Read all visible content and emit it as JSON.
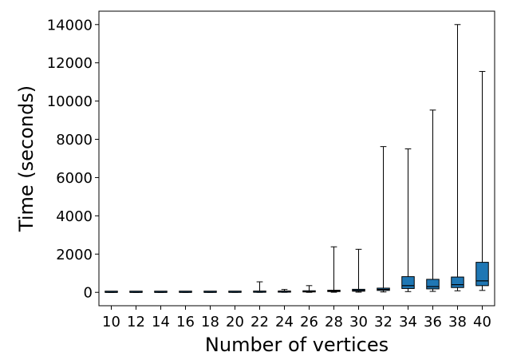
{
  "chart_data": {
    "type": "box",
    "title": "",
    "xlabel": "Number of vertices",
    "ylabel": "Time (seconds)",
    "categories": [
      "10",
      "12",
      "14",
      "16",
      "18",
      "20",
      "22",
      "24",
      "26",
      "28",
      "30",
      "32",
      "34",
      "36",
      "38",
      "40"
    ],
    "ylim": [
      -700,
      14700
    ],
    "yticks": [
      0,
      2000,
      4000,
      6000,
      8000,
      10000,
      12000,
      14000
    ],
    "grid": false,
    "box_color": "#1f77b4",
    "boxes": [
      {
        "x": "10",
        "whisker_low": 0,
        "q1": 0,
        "median": 0,
        "q3": 0,
        "whisker_high": 1
      },
      {
        "x": "12",
        "whisker_low": 0,
        "q1": 0,
        "median": 0,
        "q3": 1,
        "whisker_high": 2
      },
      {
        "x": "14",
        "whisker_low": 0,
        "q1": 0,
        "median": 1,
        "q3": 1,
        "whisker_high": 3
      },
      {
        "x": "16",
        "whisker_low": 0,
        "q1": 1,
        "median": 1,
        "q3": 2,
        "whisker_high": 5
      },
      {
        "x": "18",
        "whisker_low": 0,
        "q1": 1,
        "median": 2,
        "q3": 4,
        "whisker_high": 10
      },
      {
        "x": "20",
        "whisker_low": 0,
        "q1": 2,
        "median": 4,
        "q3": 8,
        "whisker_high": 40
      },
      {
        "x": "22",
        "whisker_low": 0,
        "q1": 5,
        "median": 10,
        "q3": 30,
        "whisker_high": 550
      },
      {
        "x": "24",
        "whisker_low": 0,
        "q1": 8,
        "median": 15,
        "q3": 40,
        "whisker_high": 150
      },
      {
        "x": "26",
        "whisker_low": 0,
        "q1": 20,
        "median": 40,
        "q3": 80,
        "whisker_high": 350
      },
      {
        "x": "28",
        "whisker_low": 5,
        "q1": 40,
        "median": 70,
        "q3": 110,
        "whisker_high": 2380
      },
      {
        "x": "30",
        "whisker_low": 10,
        "q1": 60,
        "median": 100,
        "q3": 160,
        "whisker_high": 2250
      },
      {
        "x": "32",
        "whisker_low": 20,
        "q1": 100,
        "median": 150,
        "q3": 220,
        "whisker_high": 7620
      },
      {
        "x": "34",
        "whisker_low": 40,
        "q1": 200,
        "median": 350,
        "q3": 820,
        "whisker_high": 7500
      },
      {
        "x": "36",
        "whisker_low": 50,
        "q1": 180,
        "median": 300,
        "q3": 680,
        "whisker_high": 9530
      },
      {
        "x": "38",
        "whisker_low": 80,
        "q1": 250,
        "median": 400,
        "q3": 800,
        "whisker_high": 14000
      },
      {
        "x": "40",
        "whisker_low": 100,
        "q1": 350,
        "median": 600,
        "q3": 1570,
        "whisker_high": 11550
      }
    ]
  }
}
